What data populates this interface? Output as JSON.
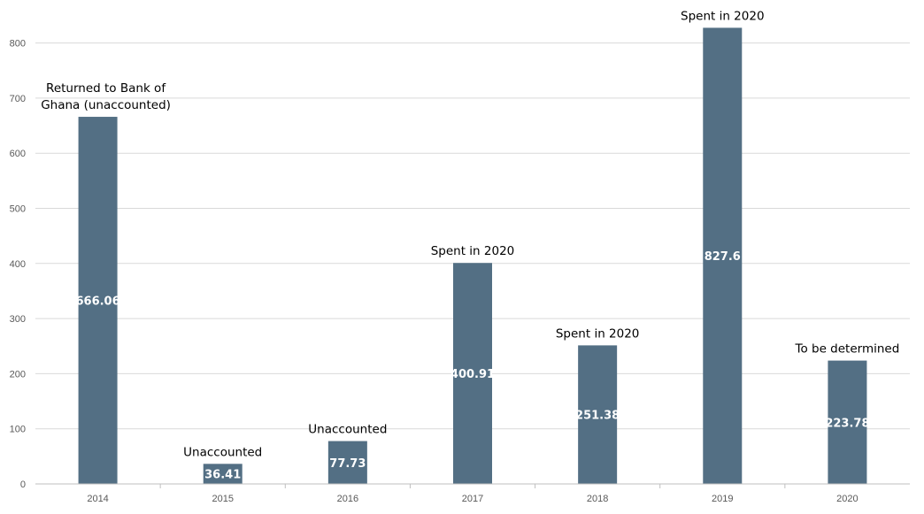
{
  "chart_data": {
    "type": "bar",
    "categories": [
      "2014",
      "2015",
      "2016",
      "2017",
      "2018",
      "2019",
      "2020"
    ],
    "values": [
      666.06,
      36.41,
      77.73,
      400.91,
      251.38,
      827.6,
      223.78
    ],
    "value_labels": [
      "666.06",
      "36.41",
      "77.73",
      "400.91",
      "251.38",
      "827.6",
      "223.78"
    ],
    "annotations": [
      [
        "Returned to Bank of",
        "Ghana (unaccounted)"
      ],
      [
        "Unaccounted"
      ],
      [
        "Unaccounted"
      ],
      [
        "Spent in 2020"
      ],
      [
        "Spent in 2020"
      ],
      [
        "Spent in 2020"
      ],
      [
        "To be determined"
      ]
    ],
    "y_ticks": [
      "0",
      "100",
      "200",
      "300",
      "400",
      "500",
      "600",
      "700",
      "800"
    ],
    "ylim": [
      0,
      800
    ],
    "grid": true,
    "colors": {
      "bar": "#536f84",
      "grid": "#d9d9d9",
      "axis": "#bfbfbf",
      "tick_text": "#595959"
    }
  }
}
